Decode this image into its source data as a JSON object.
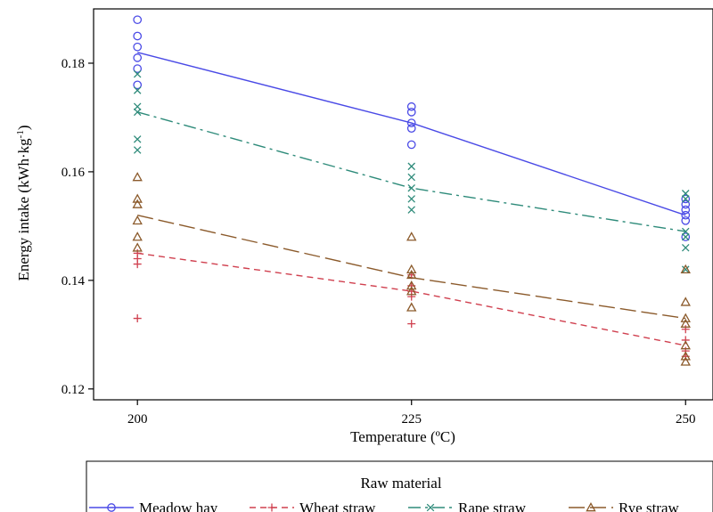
{
  "chart_data": {
    "type": "scatter",
    "xlabel": "Temperature (ºC)",
    "ylabel_main": "Energy intake (kWh·kg",
    "ylabel_sup": "-1",
    "ylabel_end": ")",
    "x_ticks": [
      "200",
      "225",
      "250"
    ],
    "x_values": [
      200,
      225,
      250
    ],
    "xlim": [
      196,
      252.5
    ],
    "ylim": [
      0.118,
      0.19
    ],
    "y_ticks": [
      0.12,
      0.14,
      0.16,
      0.18
    ],
    "y_tick_labels": [
      "0.12",
      "0.14",
      "0.16",
      "0.18"
    ],
    "legend_title": "Raw material",
    "legend_position": "bottom",
    "series": [
      {
        "name": "Meadow hay",
        "color": "#4a4ae6",
        "marker": "circle",
        "line_style": "solid",
        "fit": [
          [
            200,
            0.182
          ],
          [
            225,
            0.169
          ],
          [
            250,
            0.152
          ]
        ],
        "points": [
          [
            200,
            0.188
          ],
          [
            200,
            0.185
          ],
          [
            200,
            0.183
          ],
          [
            200,
            0.181
          ],
          [
            200,
            0.179
          ],
          [
            200,
            0.176
          ],
          [
            225,
            0.172
          ],
          [
            225,
            0.171
          ],
          [
            225,
            0.169
          ],
          [
            225,
            0.168
          ],
          [
            225,
            0.165
          ],
          [
            250,
            0.155
          ],
          [
            250,
            0.154
          ],
          [
            250,
            0.153
          ],
          [
            250,
            0.152
          ],
          [
            250,
            0.151
          ],
          [
            250,
            0.148
          ]
        ]
      },
      {
        "name": "Wheat straw",
        "color": "#d0404f",
        "marker": "plus",
        "line_style": "dash",
        "fit": [
          [
            200,
            0.145
          ],
          [
            225,
            0.138
          ],
          [
            250,
            0.128
          ]
        ],
        "points": [
          [
            200,
            0.145
          ],
          [
            200,
            0.144
          ],
          [
            200,
            0.143
          ],
          [
            200,
            0.133
          ],
          [
            225,
            0.141
          ],
          [
            225,
            0.139
          ],
          [
            225,
            0.138
          ],
          [
            225,
            0.137
          ],
          [
            225,
            0.132
          ],
          [
            250,
            0.131
          ],
          [
            250,
            0.129
          ],
          [
            250,
            0.127
          ],
          [
            250,
            0.126
          ]
        ]
      },
      {
        "name": "Rape straw",
        "color": "#2e8b7a",
        "marker": "x",
        "line_style": "dashdot",
        "fit": [
          [
            200,
            0.171
          ],
          [
            225,
            0.157
          ],
          [
            250,
            0.149
          ]
        ],
        "points": [
          [
            200,
            0.178
          ],
          [
            200,
            0.175
          ],
          [
            200,
            0.172
          ],
          [
            200,
            0.171
          ],
          [
            200,
            0.166
          ],
          [
            200,
            0.164
          ],
          [
            225,
            0.161
          ],
          [
            225,
            0.159
          ],
          [
            225,
            0.157
          ],
          [
            225,
            0.155
          ],
          [
            225,
            0.153
          ],
          [
            250,
            0.156
          ],
          [
            250,
            0.155
          ],
          [
            250,
            0.149
          ],
          [
            250,
            0.148
          ],
          [
            250,
            0.146
          ],
          [
            250,
            0.142
          ]
        ]
      },
      {
        "name": "Rye straw",
        "color": "#8b5a2b",
        "marker": "triangle",
        "line_style": "longdash",
        "fit": [
          [
            200,
            0.152
          ],
          [
            225,
            0.1405
          ],
          [
            250,
            0.133
          ]
        ],
        "points": [
          [
            200,
            0.159
          ],
          [
            200,
            0.155
          ],
          [
            200,
            0.154
          ],
          [
            200,
            0.151
          ],
          [
            200,
            0.148
          ],
          [
            200,
            0.146
          ],
          [
            225,
            0.148
          ],
          [
            225,
            0.142
          ],
          [
            225,
            0.141
          ],
          [
            225,
            0.139
          ],
          [
            225,
            0.138
          ],
          [
            225,
            0.135
          ],
          [
            250,
            0.142
          ],
          [
            250,
            0.136
          ],
          [
            250,
            0.133
          ],
          [
            250,
            0.132
          ],
          [
            250,
            0.128
          ],
          [
            250,
            0.126
          ],
          [
            250,
            0.125
          ]
        ]
      }
    ]
  }
}
